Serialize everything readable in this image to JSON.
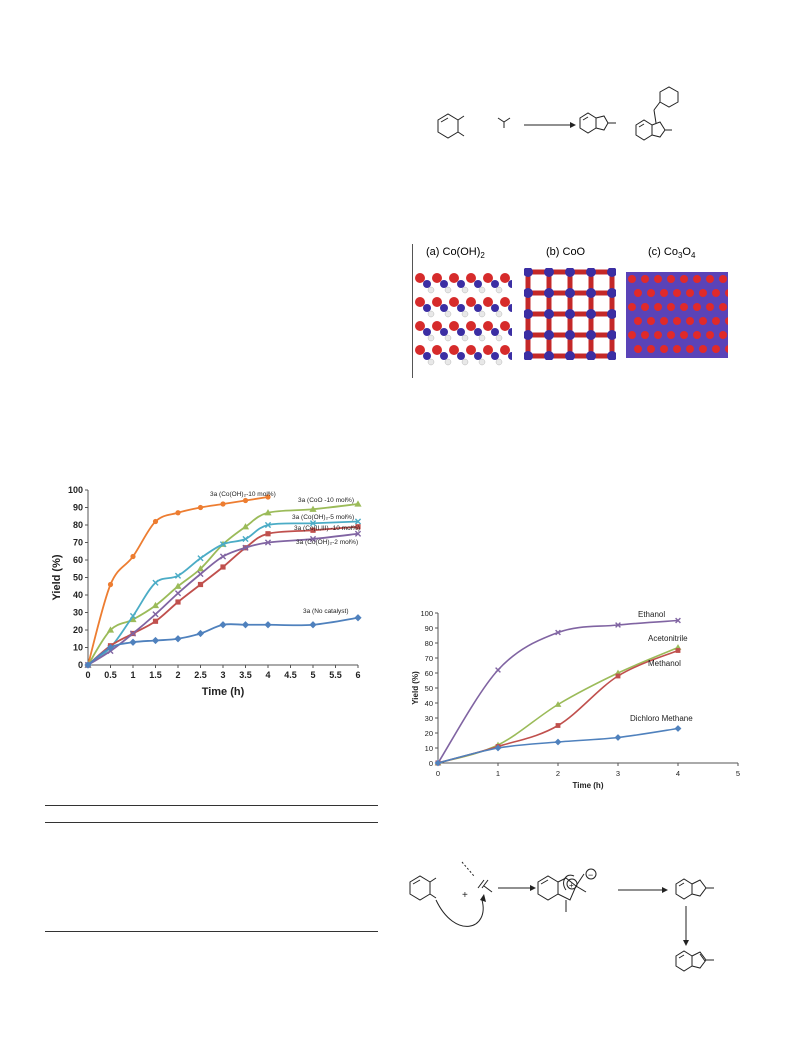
{
  "scheme1": {
    "arrow": "→"
  },
  "crystal": {
    "panels": [
      {
        "label": "(a)  Co(OH)",
        "sub": "2"
      },
      {
        "label": "(b)  CoO",
        "sub": ""
      },
      {
        "label": "(c)  Co",
        "sub3": "3",
        "mid": "O",
        "sub4": "4"
      }
    ]
  },
  "chart_data": [
    {
      "type": "line",
      "xlabel": "Time (h)",
      "ylabel": "Yield (%)",
      "xlim": [
        0,
        6
      ],
      "ylim": [
        0,
        100
      ],
      "xticks": [
        "0",
        "0.5",
        "1",
        "1.5",
        "2",
        "2.5",
        "3",
        "3.5",
        "4",
        "4.5",
        "5",
        "5.5",
        "6"
      ],
      "yticks": [
        "0",
        "10",
        "20",
        "30",
        "40",
        "50",
        "60",
        "70",
        "80",
        "90",
        "100"
      ],
      "grid": false,
      "series": [
        {
          "name": "3a (Co(OH)₂-10 mol%)",
          "color": "#ED7D31",
          "marker": "circle",
          "x": [
            0,
            0.5,
            1,
            1.5,
            2,
            2.5,
            3,
            3.5,
            4
          ],
          "y": [
            0,
            46,
            62,
            82,
            87,
            90,
            92,
            94,
            96
          ]
        },
        {
          "name": "3a (CoO -10 mol%)",
          "color": "#9BBB59",
          "marker": "triangle",
          "x": [
            0,
            0.5,
            1,
            1.5,
            2,
            2.5,
            3,
            3.5,
            4,
            5,
            6
          ],
          "y": [
            0,
            20,
            26,
            34,
            45,
            55,
            69,
            79,
            87,
            89,
            92
          ]
        },
        {
          "name": "3a (Co(OH)₂-5 mol%)",
          "color": "#4BACC6",
          "marker": "cross",
          "x": [
            0,
            0.5,
            1,
            1.5,
            2,
            2.5,
            3,
            3.5,
            4,
            5,
            6
          ],
          "y": [
            0,
            10,
            28,
            47,
            51,
            61,
            69,
            72,
            80,
            81,
            82
          ]
        },
        {
          "name": "3a (Co(II,III) -10 mol%)",
          "color": "#C0504D",
          "marker": "square",
          "x": [
            0,
            0.5,
            1,
            1.5,
            2,
            2.5,
            3,
            3.5,
            4,
            5,
            6
          ],
          "y": [
            0,
            11,
            18,
            25,
            36,
            46,
            56,
            67,
            75,
            77,
            79
          ]
        },
        {
          "name": "3a (Co(OH)₂-2 mol%)",
          "color": "#8064A2",
          "marker": "x",
          "x": [
            0,
            0.5,
            1,
            1.5,
            2,
            2.5,
            3,
            3.5,
            4,
            5,
            6
          ],
          "y": [
            0,
            8,
            18,
            29,
            41,
            52,
            62,
            67,
            70,
            72,
            75
          ]
        },
        {
          "name": "3a (No catalyst)",
          "color": "#4F81BD",
          "marker": "diamond",
          "x": [
            0,
            0.5,
            1,
            1.5,
            2,
            2.5,
            3,
            3.5,
            4,
            5,
            6
          ],
          "y": [
            0,
            10,
            13,
            14,
            15,
            18,
            23,
            23,
            23,
            23,
            27
          ]
        }
      ]
    },
    {
      "type": "line",
      "xlabel": "Time (h)",
      "ylabel": "Yield (%)",
      "xlim": [
        0,
        5
      ],
      "ylim": [
        0,
        100
      ],
      "xticks": [
        "0",
        "1",
        "2",
        "3",
        "4",
        "5"
      ],
      "yticks": [
        "0",
        "10",
        "20",
        "30",
        "40",
        "50",
        "60",
        "70",
        "80",
        "90",
        "100"
      ],
      "grid": false,
      "series": [
        {
          "name": "Ethanol",
          "color": "#8064A2",
          "marker": "x",
          "x": [
            0,
            1,
            2,
            3,
            4
          ],
          "y": [
            0,
            62,
            87,
            92,
            95
          ]
        },
        {
          "name": "Acetonitrile",
          "color": "#9BBB59",
          "marker": "triangle",
          "x": [
            0,
            1,
            2,
            3,
            4
          ],
          "y": [
            0,
            12,
            39,
            60,
            77
          ]
        },
        {
          "name": "Methanol",
          "color": "#C0504D",
          "marker": "square",
          "x": [
            0,
            1,
            2,
            3,
            4
          ],
          "y": [
            0,
            11,
            25,
            58,
            75
          ]
        },
        {
          "name": "Dichloro Methane",
          "color": "#4F81BD",
          "marker": "diamond",
          "x": [
            0,
            1,
            2,
            3,
            4
          ],
          "y": [
            0,
            10,
            14,
            17,
            23
          ]
        }
      ]
    }
  ],
  "scheme2": {
    "plus": "+",
    "plus_charge": "+",
    "minus_charge": "−"
  }
}
